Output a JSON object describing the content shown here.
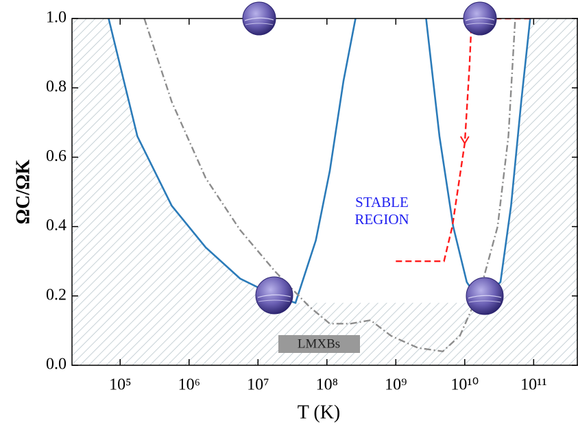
{
  "chart_data": {
    "type": "line",
    "xlabel": "T (K)",
    "ylabel": "ΩC/ΩK",
    "xscale": "log",
    "xlim": [
      20000,
      440000000000
    ],
    "ylim": [
      0,
      1
    ],
    "xticks": [
      {
        "value": 100000,
        "label": "10⁵"
      },
      {
        "value": 1000000,
        "label": "10⁶"
      },
      {
        "value": 10000000,
        "label": "10⁷"
      },
      {
        "value": 100000000,
        "label": "10⁸"
      },
      {
        "value": 1000000000,
        "label": "10⁹"
      },
      {
        "value": 10000000000,
        "label": "10¹⁰"
      },
      {
        "value": 100000000000,
        "label": "10¹¹"
      }
    ],
    "yticks": [
      {
        "value": 0,
        "label": "0.0"
      },
      0.2,
      0.4,
      0.6,
      0.8,
      {
        "value": 1,
        "label": "1.0"
      }
    ],
    "annotations": [
      "STABLE",
      "REGION",
      "LMXBs"
    ],
    "series": [
      {
        "color": "#2b7bb9",
        "style": "solid",
        "x": [
          68000,
          178000,
          560000,
          1740000,
          5500000,
          17800000,
          35000000,
          69000000,
          110000000,
          174000000,
          260000000
        ],
        "values": [
          1.0,
          0.66,
          0.46,
          0.34,
          0.25,
          0.2,
          0.18,
          0.36,
          0.56,
          0.82,
          1.0
        ]
      },
      {
        "color": "#2b7bb9",
        "style": "solid",
        "x": [
          2750000000,
          4300000000,
          6800000000,
          10700000000,
          17000000000,
          33000000000,
          47000000000,
          66000000000,
          89000000000
        ],
        "values": [
          1.0,
          0.66,
          0.4,
          0.24,
          0.18,
          0.24,
          0.46,
          0.76,
          1.0
        ]
      },
      {
        "color": "#8c8c8c",
        "style": "dashdot",
        "x": [
          224000,
          560000,
          1740000,
          5500000,
          17800000,
          55000000,
          110000000,
          220000000,
          430000000,
          850000000,
          2100000000,
          4800000000,
          8500000000,
          17000000000,
          30000000000,
          43000000000,
          54000000000
        ],
        "values": [
          1.0,
          0.76,
          0.54,
          0.39,
          0.27,
          0.17,
          0.12,
          0.12,
          0.13,
          0.085,
          0.05,
          0.04,
          0.085,
          0.22,
          0.4,
          0.66,
          1.0
        ]
      },
      {
        "color": "#ff1a1a",
        "style": "dashed",
        "x": [
          1000000000,
          5000000000,
          6600000000,
          10000000000,
          11700000000,
          12600000000,
          100000000000
        ],
        "values": [
          0.3,
          0.3,
          0.4,
          0.64,
          0.86,
          1.0,
          1.0
        ]
      }
    ]
  }
}
